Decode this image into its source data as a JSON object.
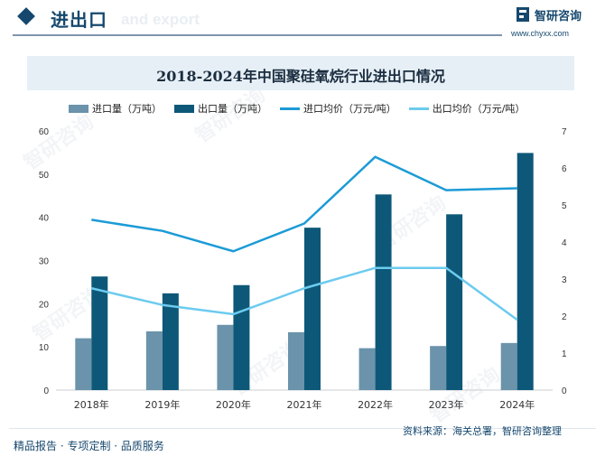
{
  "header": {
    "title": "进出口",
    "subtitle": "and export",
    "logo_name": "智研咨询",
    "logo_url": "www.chyxx.com"
  },
  "colors": {
    "brand": "#16486e",
    "import_volume": "#6b93ab",
    "export_volume": "#0d5878",
    "import_price": "#1c9bd6",
    "export_price": "#6ccbef"
  },
  "watermark_text": "智研咨询",
  "footer": {
    "source": "资料来源：海关总署，智研咨询整理",
    "tagline": "精品报告 · 专项定制 · 品质服务"
  },
  "chart_data": {
    "type": "bar",
    "title": "2018-2024年中国聚硅氧烷行业进出口情况",
    "categories": [
      "2018年",
      "2019年",
      "2020年",
      "2021年",
      "2022年",
      "2023年",
      "2024年"
    ],
    "series": [
      {
        "name": "进口量（万吨）",
        "type": "bar",
        "axis": "left",
        "values": [
          12.0,
          13.6,
          15.1,
          13.4,
          9.7,
          10.2,
          10.9
        ]
      },
      {
        "name": "出口量（万吨）",
        "type": "bar",
        "axis": "left",
        "values": [
          26.3,
          22.4,
          24.3,
          37.6,
          45.3,
          40.7,
          54.9
        ]
      },
      {
        "name": "进口均价（万元/吨）",
        "type": "line",
        "axis": "right",
        "values": [
          4.6,
          4.3,
          3.75,
          4.5,
          6.3,
          5.4,
          5.45
        ]
      },
      {
        "name": "出口均价（万元/吨）",
        "type": "line",
        "axis": "right",
        "values": [
          2.75,
          2.3,
          2.05,
          2.75,
          3.3,
          3.3,
          1.9
        ]
      }
    ],
    "y_left": {
      "min": 0,
      "max": 60,
      "ticks": [
        0,
        10,
        20,
        30,
        40,
        50,
        60
      ]
    },
    "y_right": {
      "min": 0,
      "max": 7,
      "ticks": [
        0,
        1,
        2,
        3,
        4,
        5,
        6,
        7
      ]
    },
    "grid": false,
    "legend_position": "top"
  }
}
